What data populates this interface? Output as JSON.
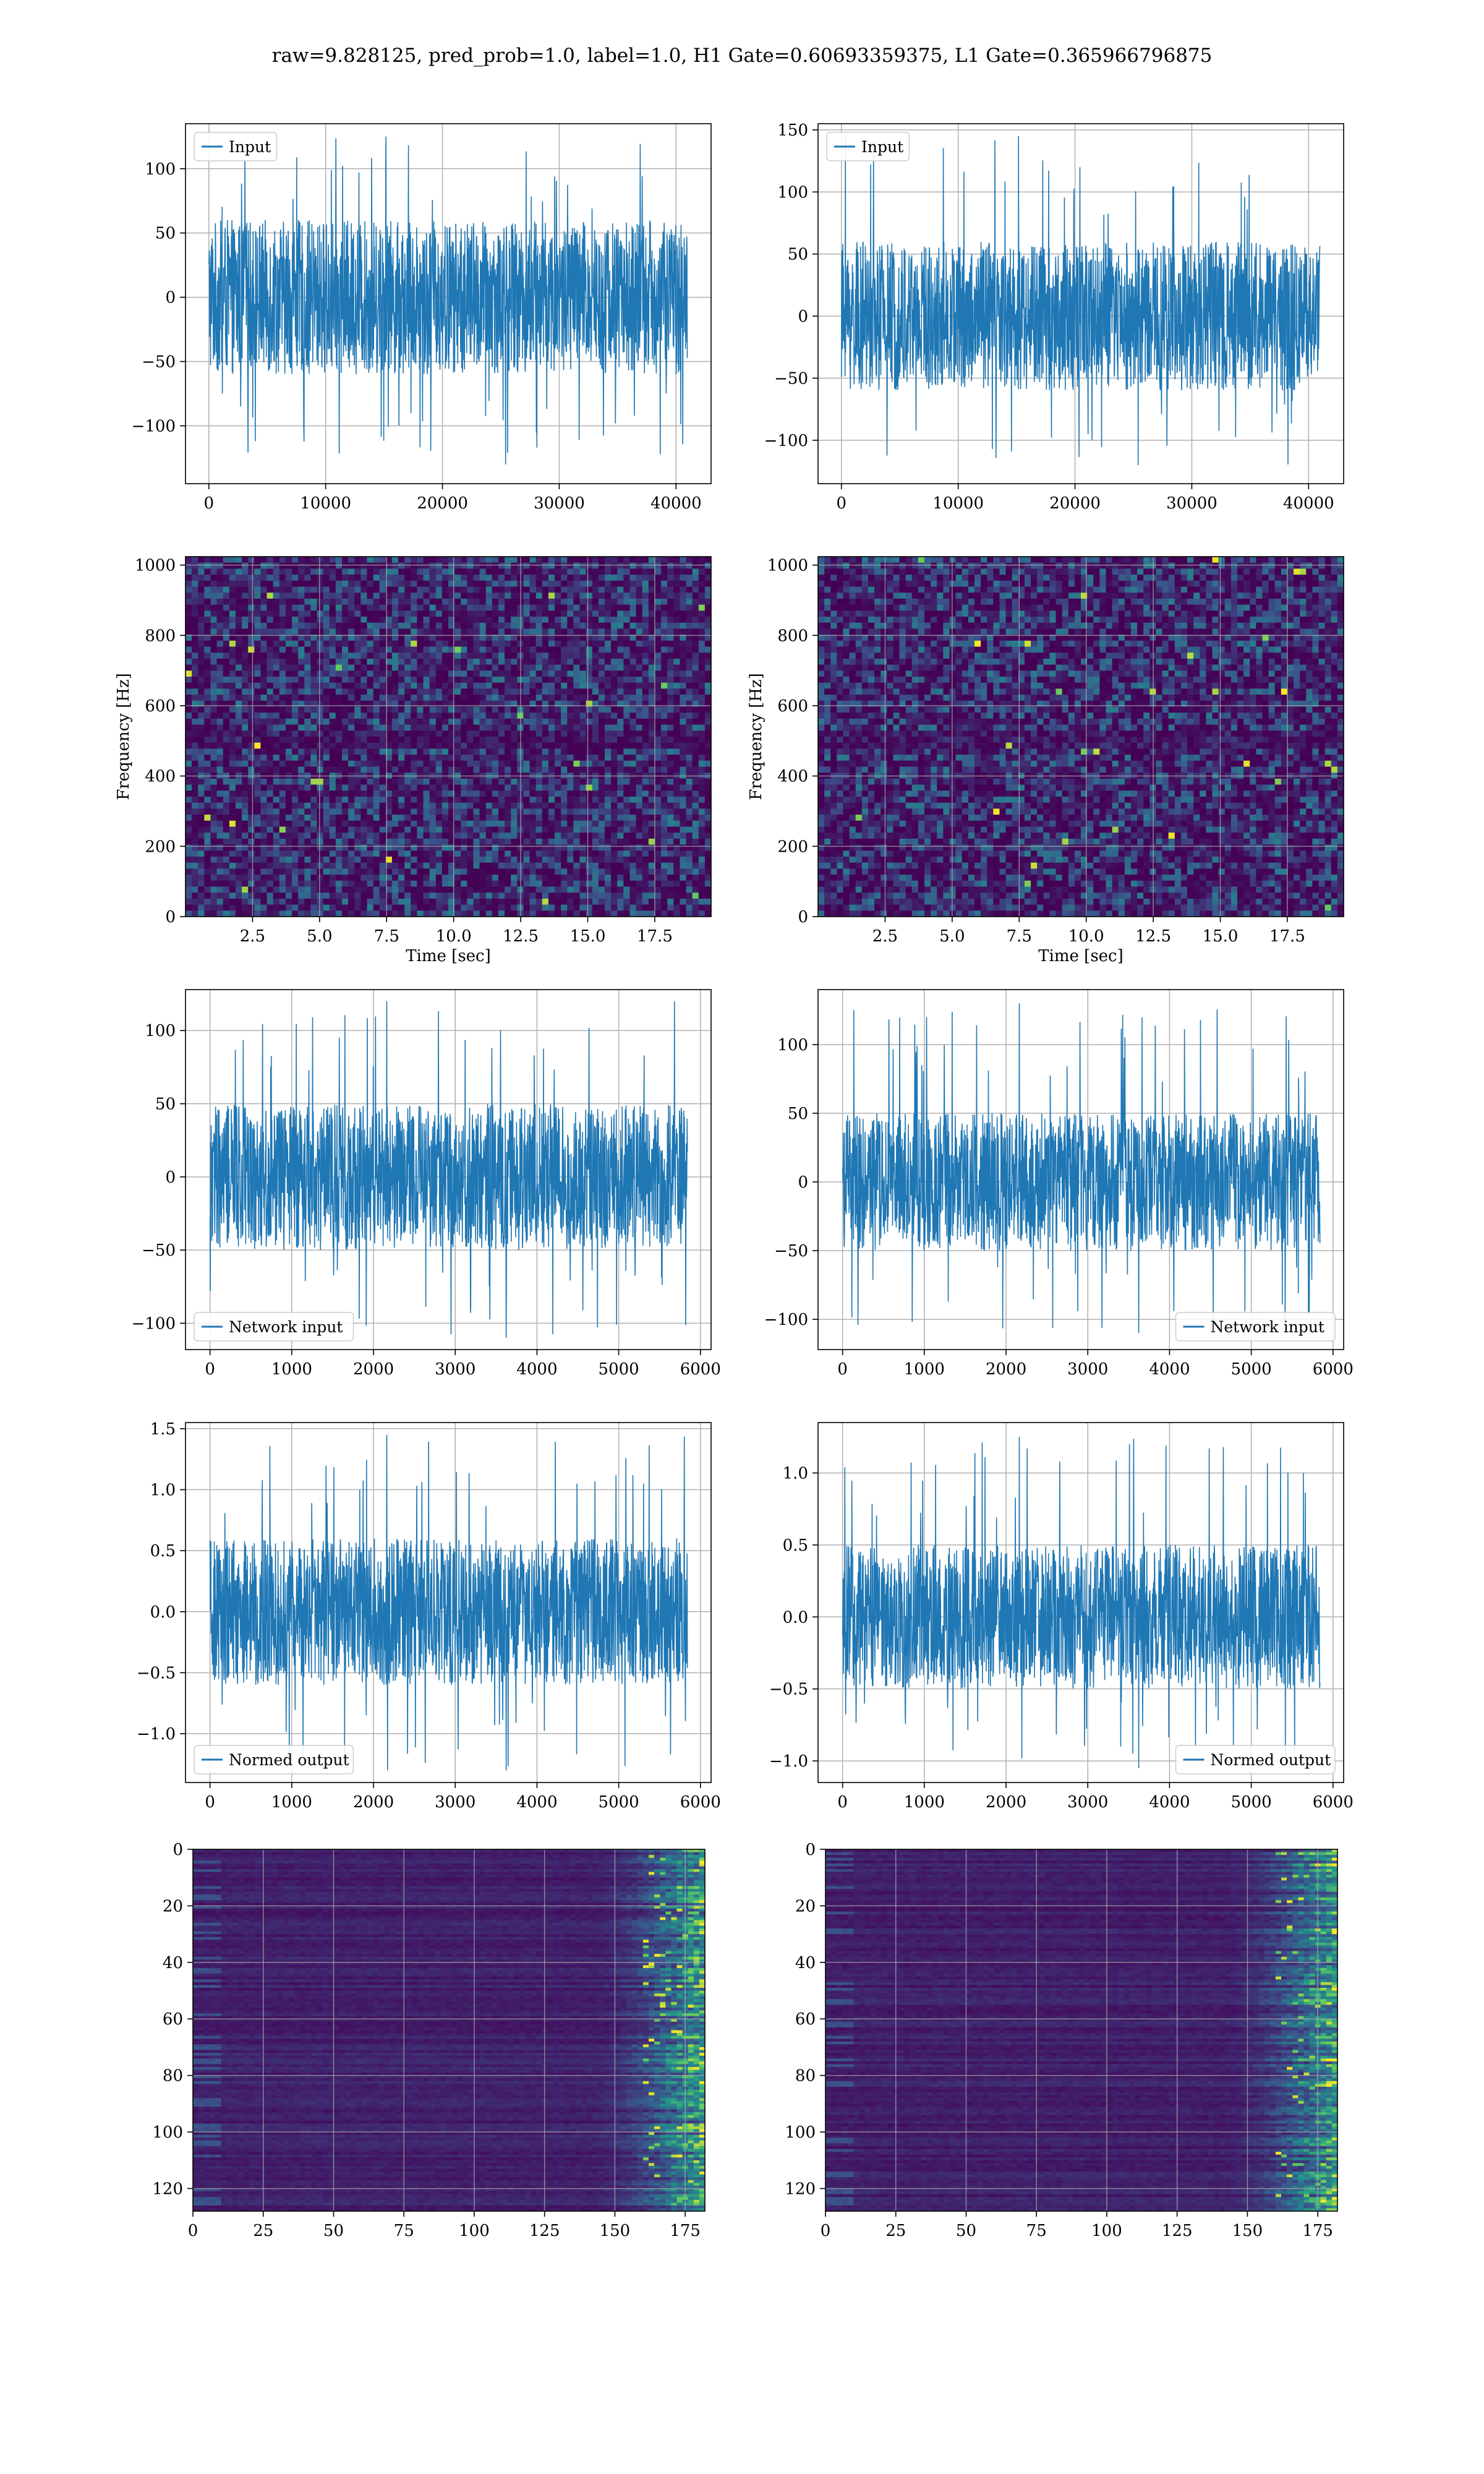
{
  "figure": {
    "title": "raw=9.828125, pred_prob=1.0, label=1.0, H1 Gate=0.60693359375, L1 Gate=0.365966796875"
  },
  "colors": {
    "line": "#1f77b4",
    "grid": "#b0b0b0",
    "viridis_dark": "#440154",
    "viridis_mid": "#21918c",
    "viridis_bright": "#fde725"
  },
  "chart_data": [
    {
      "type": "line",
      "panel": "row1-left",
      "series": [
        {
          "name": "Input",
          "x_range": [
            0,
            40960
          ],
          "amplitude_typical": 60,
          "min": -130,
          "max": 125
        }
      ],
      "xlim": [
        -2000,
        43000
      ],
      "ylim": [
        -145,
        135
      ],
      "xticks": [
        0,
        10000,
        20000,
        30000,
        40000
      ],
      "xtick_labels": [
        "0",
        "10000",
        "20000",
        "30000",
        "40000"
      ],
      "yticks": [
        -100,
        -50,
        0,
        50,
        100
      ],
      "ytick_labels": [
        "−100",
        "−50",
        "0",
        "50",
        "100"
      ],
      "xlabel": "",
      "ylabel": "",
      "legend": "top-left",
      "grid": true
    },
    {
      "type": "line",
      "panel": "row1-right",
      "series": [
        {
          "name": "Input",
          "x_range": [
            0,
            40960
          ],
          "amplitude_typical": 60,
          "min": -120,
          "max": 145
        }
      ],
      "xlim": [
        -2000,
        43000
      ],
      "ylim": [
        -135,
        155
      ],
      "xticks": [
        0,
        10000,
        20000,
        30000,
        40000
      ],
      "xtick_labels": [
        "0",
        "10000",
        "20000",
        "30000",
        "40000"
      ],
      "yticks": [
        -100,
        -50,
        0,
        50,
        100,
        150
      ],
      "ytick_labels": [
        "−100",
        "−50",
        "0",
        "50",
        "100",
        "150"
      ],
      "xlabel": "",
      "ylabel": "",
      "legend": "top-left",
      "grid": true
    },
    {
      "type": "heatmap",
      "panel": "row2-left",
      "colormap": "viridis",
      "xlim": [
        0,
        19.6
      ],
      "ylim": [
        0,
        1024
      ],
      "xticks": [
        2.5,
        5.0,
        7.5,
        10.0,
        12.5,
        15.0,
        17.5
      ],
      "xtick_labels": [
        "2.5",
        "5.0",
        "7.5",
        "10.0",
        "12.5",
        "15.0",
        "17.5"
      ],
      "yticks": [
        0,
        200,
        400,
        600,
        800,
        1000
      ],
      "ytick_labels": [
        "0",
        "200",
        "400",
        "600",
        "800",
        "1000"
      ],
      "xlabel": "Time [sec]",
      "ylabel": "Frequency [Hz]",
      "grid": true
    },
    {
      "type": "heatmap",
      "panel": "row2-right",
      "colormap": "viridis",
      "xlim": [
        0,
        19.6
      ],
      "ylim": [
        0,
        1024
      ],
      "xticks": [
        2.5,
        5.0,
        7.5,
        10.0,
        12.5,
        15.0,
        17.5
      ],
      "xtick_labels": [
        "2.5",
        "5.0",
        "7.5",
        "10.0",
        "12.5",
        "15.0",
        "17.5"
      ],
      "yticks": [
        0,
        200,
        400,
        600,
        800,
        1000
      ],
      "ytick_labels": [
        "0",
        "200",
        "400",
        "600",
        "800",
        "1000"
      ],
      "xlabel": "Time [sec]",
      "ylabel": "Frequency [Hz]",
      "grid": true
    },
    {
      "type": "line",
      "panel": "row3-left",
      "series": [
        {
          "name": "Network input",
          "x_range": [
            0,
            5840
          ],
          "amplitude_typical": 50,
          "min": -110,
          "max": 120
        }
      ],
      "xlim": [
        -300,
        6130
      ],
      "ylim": [
        -118,
        128
      ],
      "xticks": [
        0,
        1000,
        2000,
        3000,
        4000,
        5000,
        6000
      ],
      "xtick_labels": [
        "0",
        "1000",
        "2000",
        "3000",
        "4000",
        "5000",
        "6000"
      ],
      "yticks": [
        -100,
        -50,
        0,
        50,
        100
      ],
      "ytick_labels": [
        "−100",
        "−50",
        "0",
        "50",
        "100"
      ],
      "xlabel": "",
      "ylabel": "",
      "legend": "bottom-left",
      "grid": true
    },
    {
      "type": "line",
      "panel": "row3-right",
      "series": [
        {
          "name": "Network input",
          "x_range": [
            0,
            5840
          ],
          "amplitude_typical": 50,
          "min": -110,
          "max": 130
        }
      ],
      "xlim": [
        -300,
        6130
      ],
      "ylim": [
        -122,
        140
      ],
      "xticks": [
        0,
        1000,
        2000,
        3000,
        4000,
        5000,
        6000
      ],
      "xtick_labels": [
        "0",
        "1000",
        "2000",
        "3000",
        "4000",
        "5000",
        "6000"
      ],
      "yticks": [
        -100,
        -50,
        0,
        50,
        100
      ],
      "ytick_labels": [
        "−100",
        "−50",
        "0",
        "50",
        "100"
      ],
      "xlabel": "",
      "ylabel": "",
      "legend": "bottom-right",
      "grid": true
    },
    {
      "type": "line",
      "panel": "row4-left",
      "series": [
        {
          "name": "Normed output",
          "x_range": [
            0,
            5840
          ],
          "amplitude_typical": 0.6,
          "min": -1.3,
          "max": 1.45
        }
      ],
      "xlim": [
        -300,
        6130
      ],
      "ylim": [
        -1.4,
        1.55
      ],
      "xticks": [
        0,
        1000,
        2000,
        3000,
        4000,
        5000,
        6000
      ],
      "xtick_labels": [
        "0",
        "1000",
        "2000",
        "3000",
        "4000",
        "5000",
        "6000"
      ],
      "yticks": [
        -1.0,
        -0.5,
        0.0,
        0.5,
        1.0,
        1.5
      ],
      "ytick_labels": [
        "−1.0",
        "−0.5",
        "0.0",
        "0.5",
        "1.0",
        "1.5"
      ],
      "xlabel": "",
      "ylabel": "",
      "legend": "bottom-left",
      "grid": true
    },
    {
      "type": "line",
      "panel": "row4-right",
      "series": [
        {
          "name": "Normed output",
          "x_range": [
            0,
            5840
          ],
          "amplitude_typical": 0.5,
          "min": -1.05,
          "max": 1.25
        }
      ],
      "xlim": [
        -300,
        6130
      ],
      "ylim": [
        -1.15,
        1.35
      ],
      "xticks": [
        0,
        1000,
        2000,
        3000,
        4000,
        5000,
        6000
      ],
      "xtick_labels": [
        "0",
        "1000",
        "2000",
        "3000",
        "4000",
        "5000",
        "6000"
      ],
      "yticks": [
        -1.0,
        -0.5,
        0.0,
        0.5,
        1.0
      ],
      "ytick_labels": [
        "−1.0",
        "−0.5",
        "0.0",
        "0.5",
        "1.0"
      ],
      "xlabel": "",
      "ylabel": "",
      "legend": "bottom-right",
      "grid": true
    },
    {
      "type": "heatmap",
      "panel": "row5-left",
      "colormap": "viridis",
      "xlim": [
        0,
        182
      ],
      "ylim": [
        128,
        0
      ],
      "xticks": [
        0,
        25,
        50,
        75,
        100,
        125,
        150,
        175
      ],
      "xtick_labels": [
        "0",
        "25",
        "50",
        "75",
        "100",
        "125",
        "150",
        "175"
      ],
      "yticks": [
        0,
        20,
        40,
        60,
        80,
        100,
        120
      ],
      "ytick_labels": [
        "0",
        "20",
        "40",
        "60",
        "80",
        "100",
        "120"
      ],
      "xlabel": "",
      "ylabel": "",
      "grid": true
    },
    {
      "type": "heatmap",
      "panel": "row5-right",
      "colormap": "viridis",
      "xlim": [
        0,
        182
      ],
      "ylim": [
        128,
        0
      ],
      "xticks": [
        0,
        25,
        50,
        75,
        100,
        125,
        150,
        175
      ],
      "xtick_labels": [
        "0",
        "25",
        "50",
        "75",
        "100",
        "125",
        "150",
        "175"
      ],
      "yticks": [
        0,
        20,
        40,
        60,
        80,
        100,
        120
      ],
      "ytick_labels": [
        "0",
        "20",
        "40",
        "60",
        "80",
        "100",
        "120"
      ],
      "xlabel": "",
      "ylabel": "",
      "grid": true
    }
  ]
}
